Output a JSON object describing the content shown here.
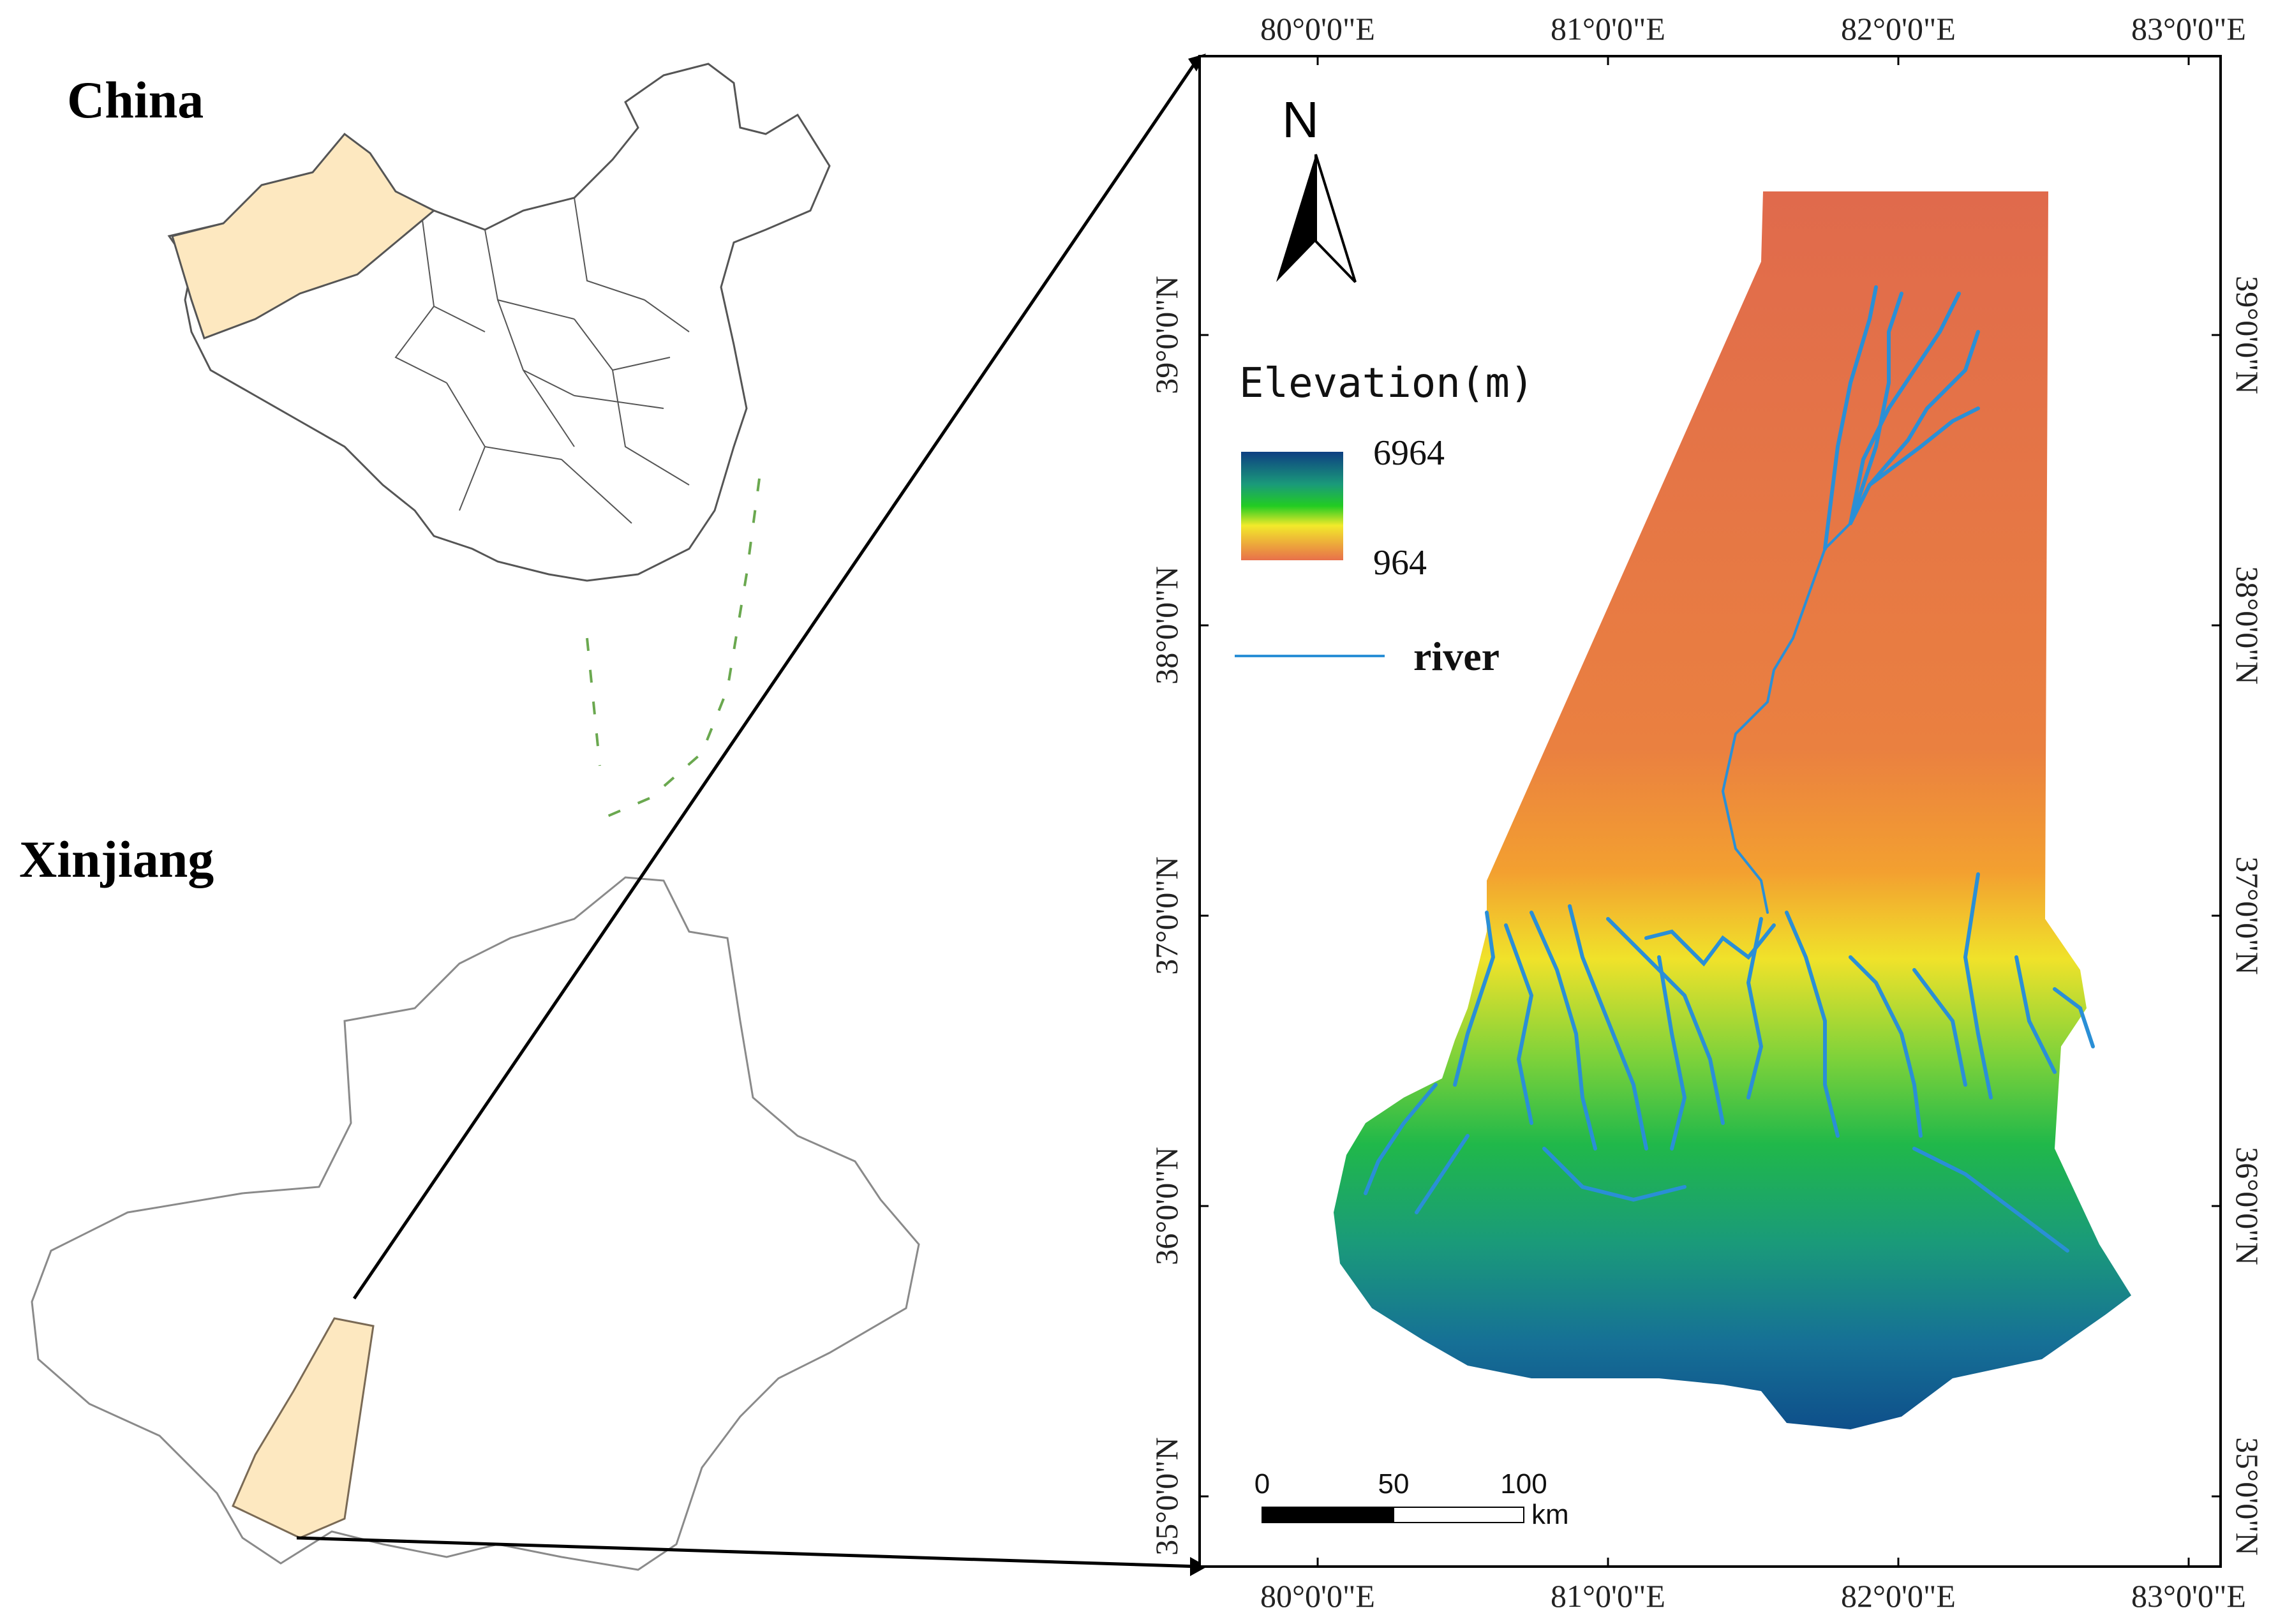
{
  "labels": {
    "china": "China",
    "xinjiang": "Xinjiang"
  },
  "map": {
    "north": "N",
    "legend": {
      "title": "Elevation(m)",
      "max": "6964",
      "min": "964",
      "river": "river"
    },
    "scale": {
      "ticks": [
        "0",
        "50",
        "100"
      ],
      "unit": "km"
    },
    "axes": {
      "top": [
        "80°0'0\"E",
        "81°0'0\"E",
        "82°0'0\"E",
        "83°0'0\"E"
      ],
      "bottom": [
        "80°0'0\"E",
        "81°0'0\"E",
        "82°0'0\"E",
        "83°0'0\"E"
      ],
      "left": [
        "39°0'0\"N",
        "38°0'0\"N",
        "37°0'0\"N",
        "36°0'0\"N",
        "35°0'0\"N"
      ],
      "right": [
        "39°0'0\"N",
        "38°0'0\"N",
        "37°0'0\"N",
        "36°0'0\"N",
        "35°0'0\"N"
      ]
    },
    "colors": {
      "ramp_high": "#0e4f8a",
      "ramp_mid": "#22cc22",
      "ramp_yellow": "#f2ea2a",
      "ramp_low": "#e8704a",
      "river": "#2a8fd6",
      "highlight": "#fde8c0"
    }
  }
}
